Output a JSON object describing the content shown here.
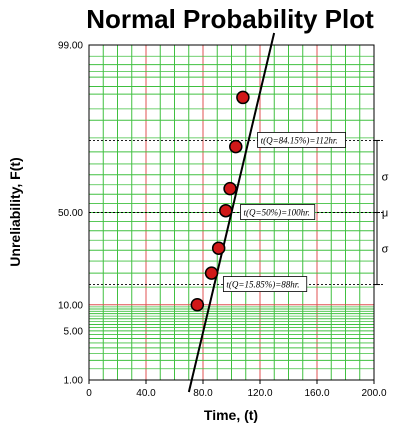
{
  "chart_data": {
    "type": "scatter",
    "title": "Normal Probability Plot",
    "xlabel": "Time, (t)",
    "ylabel": "Unreliability, F(t)",
    "xlim": [
      0,
      200
    ],
    "ylim_percent": [
      1,
      99
    ],
    "y_scale": "normal-probability",
    "grid": true,
    "x_ticks": [
      "0",
      "40.0",
      "80.0",
      "120.0",
      "160.0",
      "200.0"
    ],
    "y_ticks": [
      "1.00",
      "5.00",
      "10.00",
      "50.00",
      "99.00"
    ],
    "points": [
      {
        "x": 76,
        "y": 10.0
      },
      {
        "x": 86,
        "y": 20.0
      },
      {
        "x": 91,
        "y": 31.0
      },
      {
        "x": 96,
        "y": 51.0
      },
      {
        "x": 99,
        "y": 63.0
      },
      {
        "x": 103,
        "y": 82.0
      },
      {
        "x": 108,
        "y": 94.5
      }
    ],
    "fit_line": {
      "mean": 100,
      "std": 12
    },
    "annotations": [
      {
        "text": "t(Q=84.15%)=112hr.",
        "q": 84.15
      },
      {
        "text": "t(Q=50%)=100hr.",
        "q": 50
      },
      {
        "text": "t(Q=15.85%)=88hr.",
        "q": 15.85
      }
    ],
    "side_labels": [
      "σ",
      "μ",
      "σ"
    ],
    "colors": {
      "grid_major": "#e05050",
      "grid_minor": "#40c040",
      "marker_fill": "#d01818",
      "marker_edge": "#000000",
      "line": "#000000"
    }
  }
}
